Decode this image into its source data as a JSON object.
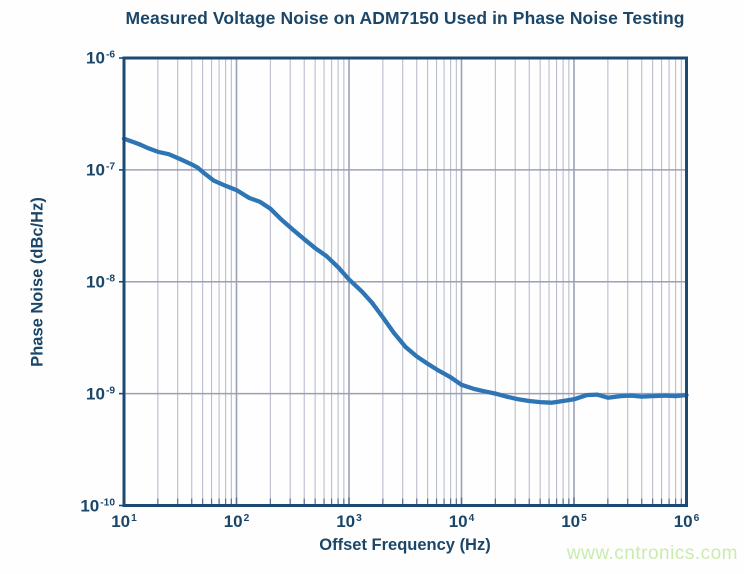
{
  "title": "Measured Voltage Noise on ADM7150 Used in Phase Noise Testing",
  "watermark": "www.cntronics.com",
  "colors": {
    "title_text": "#1b4668",
    "axis_border": "#1c4a74",
    "grid_major": "#9ba0b8",
    "grid_minor": "#babdce",
    "tick_mark": "#5c6f8e",
    "curve": "#2e75b5",
    "watermark": "#c9ecae",
    "background": "#ffffff"
  },
  "chart_data": {
    "type": "line",
    "title": "Measured Voltage Noise on ADM7150 Used in Phase Noise Testing",
    "xlabel": "Offset Frequency (Hz)",
    "ylabel": "Phase Noise (dBc/Hz)",
    "x_scale": "log",
    "y_scale": "log",
    "xlim": [
      10,
      1000000
    ],
    "ylim": [
      1e-10,
      1e-06
    ],
    "x_tick_exponents": [
      "1",
      "2",
      "3",
      "4",
      "5",
      "6"
    ],
    "y_tick_exponents": [
      "-6",
      "-7",
      "-8",
      "-9",
      "-10"
    ],
    "tick_base": "10",
    "grid": {
      "vertical": "log major + minor",
      "horizontal": "major decades only"
    },
    "legend": "none",
    "series": [
      {
        "x": [
          10,
          12,
          14,
          16,
          20,
          25,
          32,
          40,
          45,
          50,
          63,
          80,
          100,
          130,
          160,
          200,
          250,
          320,
          400,
          500,
          630,
          800,
          1000,
          1300,
          1600,
          2000,
          2500,
          3200,
          4000,
          5000,
          6300,
          8000,
          10000,
          13000,
          16000,
          20000,
          25000,
          32000,
          40000,
          50000,
          63000,
          80000,
          100000,
          130000,
          160000,
          200000,
          260000,
          320000,
          400000,
          500000,
          650000,
          800000,
          1000000
        ],
        "y": [
          1.9e-07,
          1.78e-07,
          1.68e-07,
          1.58e-07,
          1.45e-07,
          1.38e-07,
          1.24e-07,
          1.12e-07,
          1.05e-07,
          9.6e-08,
          8e-08,
          7.2e-08,
          6.6e-08,
          5.6e-08,
          5.2e-08,
          4.5e-08,
          3.6e-08,
          2.9e-08,
          2.4e-08,
          2e-08,
          1.7e-08,
          1.35e-08,
          1.05e-08,
          8.2e-09,
          6.5e-09,
          4.8e-09,
          3.5e-09,
          2.6e-09,
          2.15e-09,
          1.85e-09,
          1.6e-09,
          1.4e-09,
          1.2e-09,
          1.1e-09,
          1.05e-09,
          1e-09,
          9.4e-10,
          8.9e-10,
          8.6e-10,
          8.4e-10,
          8.3e-10,
          8.6e-10,
          8.9e-10,
          9.7e-10,
          9.8e-10,
          9.2e-10,
          9.5e-10,
          9.6e-10,
          9.4e-10,
          9.5e-10,
          9.6e-10,
          9.5e-10,
          9.7e-10
        ]
      }
    ]
  }
}
